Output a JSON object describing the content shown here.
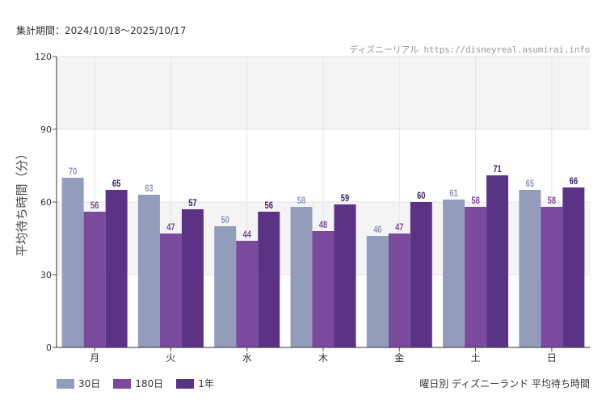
{
  "period": "集計期間：2024/10/18〜2025/10/17",
  "credit": "ディズニーリアル https://disneyreal.asumirai.info",
  "chart_data": {
    "type": "bar",
    "title": "曜日別 ディズニーランド 平均待ち時間",
    "ylabel": "平均待ち時間（分）",
    "xlabel": "",
    "categories": [
      "月",
      "火",
      "水",
      "木",
      "金",
      "土",
      "日"
    ],
    "ylim": [
      0,
      120
    ],
    "yticks": [
      0,
      30,
      60,
      90,
      120
    ],
    "grid": true,
    "legend_position": "bottom-left",
    "series": [
      {
        "name": "30日",
        "color": "#949cbc",
        "label_color": "#8d96b8",
        "values": [
          70,
          63,
          50,
          58,
          46,
          61,
          65
        ]
      },
      {
        "name": "180日",
        "color": "#7a4a9c",
        "label_color": "#7a4a9c",
        "values": [
          56,
          47,
          44,
          48,
          47,
          58,
          58
        ]
      },
      {
        "name": "1年",
        "color": "#5b3384",
        "label_color": "#3c1f60",
        "values": [
          65,
          57,
          56,
          59,
          60,
          71,
          66
        ]
      }
    ]
  }
}
